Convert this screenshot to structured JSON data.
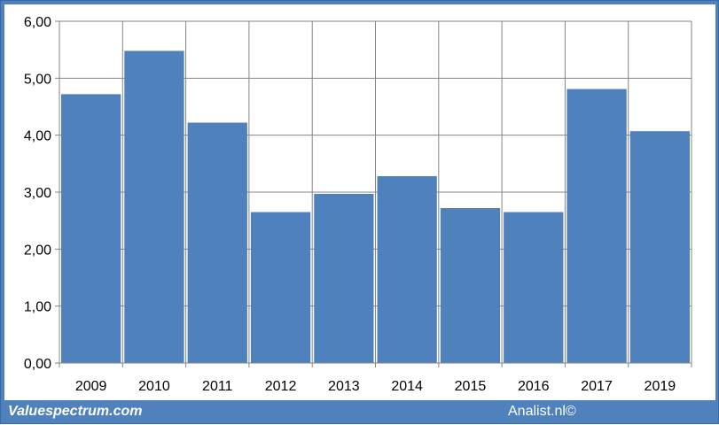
{
  "chart_data": {
    "type": "bar",
    "categories": [
      "2009",
      "2010",
      "2011",
      "2012",
      "2013",
      "2014",
      "2015",
      "2016",
      "2017",
      "2019"
    ],
    "values": [
      4.72,
      5.48,
      4.22,
      2.65,
      2.97,
      3.28,
      2.72,
      2.65,
      4.81,
      4.07
    ],
    "ylim": [
      0,
      6
    ],
    "yticks": [
      "0,00",
      "1,00",
      "2,00",
      "3,00",
      "4,00",
      "5,00",
      "6,00"
    ],
    "grid": true,
    "bar_color": "#4f81bd",
    "title": "",
    "xlabel": "",
    "ylabel": ""
  },
  "footer": {
    "left": "Valuespectrum.com",
    "right": "Analist.nl©"
  }
}
